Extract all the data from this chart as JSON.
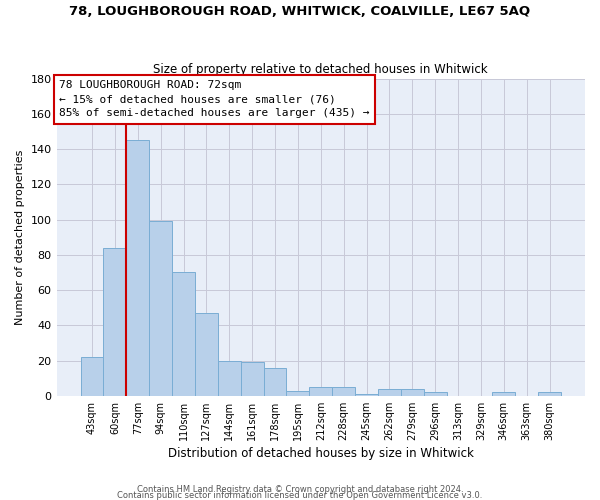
{
  "title1": "78, LOUGHBOROUGH ROAD, WHITWICK, COALVILLE, LE67 5AQ",
  "title2": "Size of property relative to detached houses in Whitwick",
  "xlabel": "Distribution of detached houses by size in Whitwick",
  "ylabel": "Number of detached properties",
  "categories": [
    "43sqm",
    "60sqm",
    "77sqm",
    "94sqm",
    "110sqm",
    "127sqm",
    "144sqm",
    "161sqm",
    "178sqm",
    "195sqm",
    "212sqm",
    "228sqm",
    "245sqm",
    "262sqm",
    "279sqm",
    "296sqm",
    "313sqm",
    "329sqm",
    "346sqm",
    "363sqm",
    "380sqm"
  ],
  "values": [
    22,
    84,
    145,
    99,
    70,
    47,
    20,
    19,
    16,
    3,
    5,
    5,
    1,
    4,
    4,
    2,
    0,
    0,
    2,
    0,
    2
  ],
  "bar_color": "#b8d0ea",
  "bar_edge_color": "#7aadd4",
  "ylim": [
    0,
    180
  ],
  "yticks": [
    0,
    20,
    40,
    60,
    80,
    100,
    120,
    140,
    160,
    180
  ],
  "vline_x": 1.5,
  "vline_color": "#cc0000",
  "annotation_line1": "78 LOUGHBOROUGH ROAD: 72sqm",
  "annotation_line2": "← 15% of detached houses are smaller (76)",
  "annotation_line3": "85% of semi-detached houses are larger (435) →",
  "annotation_box_color": "#ffffff",
  "annotation_box_edge": "#cc0000",
  "footer1": "Contains HM Land Registry data © Crown copyright and database right 2024.",
  "footer2": "Contains public sector information licensed under the Open Government Licence v3.0.",
  "background_color": "#e8eef8",
  "grid_color": "#c8c8d8"
}
